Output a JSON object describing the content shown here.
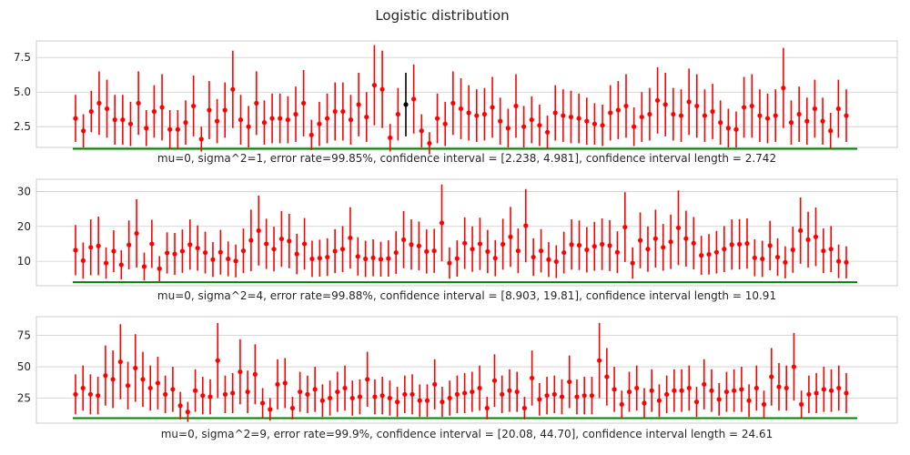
{
  "figure": {
    "title": "Logistic distribution"
  },
  "chart_data": [
    {
      "type": "errorbar",
      "caption": "mu=0, sigma^2=1, error rate=99.85%, confidence interval = [2.238, 4.981], confidence interval length = 2.742",
      "ylim": [
        1.0,
        8.7
      ],
      "yticks": [
        2.5,
        5.0,
        7.5
      ],
      "ytick_labels": [
        "2.5",
        "5.0",
        "7.5"
      ],
      "grid": true,
      "reference_line": {
        "value": 0.9,
        "color": "#008000"
      },
      "point_color": "#ff0000",
      "miss_color": "#000000",
      "miss_indices": [
        42
      ],
      "values": [
        3.1,
        2.2,
        3.6,
        4.2,
        3.8,
        3.0,
        3.0,
        2.7,
        4.2,
        2.4,
        3.6,
        3.9,
        2.3,
        2.3,
        2.8,
        4.0,
        1.6,
        3.7,
        2.9,
        3.7,
        5.2,
        3.0,
        2.5,
        4.2,
        2.8,
        3.1,
        3.1,
        3.0,
        3.4,
        4.2,
        1.9,
        2.7,
        3.1,
        3.6,
        3.6,
        3.0,
        4.1,
        3.2,
        5.5,
        5.2,
        1.7,
        3.4,
        4.1,
        4.5,
        2.2,
        1.3,
        3.1,
        2.7,
        4.2,
        3.8,
        3.5,
        3.3,
        3.4,
        3.9,
        2.9,
        2.4,
        4.0,
        2.5,
        3.0,
        2.6,
        2.1,
        3.5,
        3.3,
        3.2,
        3.1,
        2.9,
        2.7,
        2.6,
        3.5,
        3.7,
        4.0,
        2.5,
        3.2,
        3.4,
        4.4,
        4.1,
        3.4,
        3.3,
        4.3,
        4.0,
        3.3,
        3.6,
        2.8,
        2.4,
        2.3,
        3.9,
        4.0,
        3.3,
        3.1,
        3.3,
        5.3,
        2.8,
        3.4,
        2.9,
        3.8,
        2.9,
        2.2,
        3.8,
        3.3
      ],
      "half_widths": [
        1.7,
        1.2,
        1.5,
        2.3,
        2.1,
        1.8,
        1.8,
        1.6,
        2.3,
        1.3,
        1.9,
        2.4,
        1.4,
        1.4,
        1.6,
        2.2,
        0.9,
        2.1,
        1.6,
        2.0,
        2.8,
        1.8,
        1.5,
        2.3,
        1.6,
        1.8,
        1.8,
        1.7,
        2.0,
        2.4,
        1.1,
        1.6,
        1.8,
        2.1,
        2.1,
        1.8,
        2.3,
        1.8,
        2.9,
        2.8,
        1.0,
        1.9,
        2.3,
        2.5,
        1.2,
        0.8,
        1.8,
        1.6,
        2.3,
        2.2,
        2.0,
        1.9,
        1.9,
        2.2,
        1.7,
        1.4,
        2.3,
        1.5,
        1.7,
        1.5,
        1.2,
        2.0,
        1.9,
        1.9,
        1.8,
        1.7,
        1.5,
        1.5,
        2.0,
        2.1,
        2.3,
        1.4,
        1.8,
        1.9,
        2.4,
        2.3,
        1.9,
        1.9,
        2.4,
        2.3,
        1.9,
        2.0,
        1.6,
        1.4,
        1.3,
        2.2,
        2.3,
        1.9,
        1.8,
        1.9,
        2.9,
        1.6,
        2.0,
        1.7,
        2.1,
        1.7,
        1.3,
        2.1,
        1.9
      ]
    },
    {
      "type": "errorbar",
      "caption": "mu=0, sigma^2=4, error rate=99.88%, confidence interval = [8.903, 19.81], confidence interval length = 10.91",
      "ylim": [
        3.0,
        33.5
      ],
      "yticks": [
        10,
        20,
        30
      ],
      "ytick_labels": [
        "10",
        "20",
        "30"
      ],
      "grid": true,
      "reference_line": {
        "value": 4.0,
        "color": "#008000"
      },
      "point_color": "#ff0000",
      "values": [
        13.2,
        10.2,
        14.0,
        14.4,
        9.5,
        12.9,
        9.0,
        14.7,
        18.0,
        8.5,
        15.0,
        7.9,
        12.4,
        12.1,
        12.9,
        14.8,
        13.8,
        12.5,
        10.5,
        12.6,
        10.7,
        10.1,
        13.0,
        16.0,
        18.8,
        15.0,
        13.5,
        16.4,
        15.8,
        12.1,
        15.0,
        10.7,
        10.9,
        11.2,
        12.9,
        13.5,
        16.7,
        11.4,
        10.7,
        11.0,
        10.6,
        10.8,
        12.5,
        16.2,
        14.8,
        14.4,
        12.8,
        13.0,
        21.0,
        9.5,
        10.8,
        15.2,
        13.5,
        15.0,
        12.8,
        10.9,
        14.9,
        17.0,
        13.0,
        20.2,
        11.2,
        13.0,
        10.5,
        9.9,
        12.5,
        14.8,
        14.6,
        13.3,
        14.3,
        14.9,
        14.5,
        12.6,
        19.8,
        9.5,
        16.0,
        13.5,
        16.5,
        14.0,
        15.6,
        19.6,
        16.5,
        15.2,
        11.7,
        12.0,
        12.6,
        13.5,
        14.8,
        14.9,
        15.1,
        11.0,
        10.7,
        14.5,
        11.2,
        9.7,
        13.3,
        18.8,
        16.2,
        17.0,
        13.0,
        13.5,
        10.0,
        9.7
      ],
      "half_widths": [
        7.2,
        5.2,
        8.0,
        8.4,
        4.5,
        6.0,
        4.2,
        7.0,
        9.8,
        4.0,
        6.9,
        3.6,
        5.9,
        6.0,
        6.2,
        7.2,
        6.5,
        6.0,
        5.0,
        6.4,
        5.0,
        4.7,
        6.4,
        8.8,
        10.0,
        7.2,
        6.4,
        8.0,
        7.8,
        5.8,
        7.4,
        5.2,
        5.3,
        5.4,
        6.3,
        6.6,
        8.8,
        5.5,
        5.2,
        5.3,
        5.0,
        5.2,
        6.1,
        8.2,
        7.2,
        7.0,
        6.3,
        6.3,
        11.0,
        4.5,
        5.2,
        7.4,
        6.5,
        7.5,
        6.2,
        5.2,
        7.3,
        8.6,
        6.4,
        10.5,
        5.4,
        6.2,
        5.0,
        4.7,
        6.0,
        7.2,
        7.1,
        6.5,
        7.0,
        7.4,
        7.3,
        6.0,
        10.0,
        4.5,
        8.0,
        6.5,
        8.3,
        6.7,
        7.8,
        10.7,
        8.0,
        7.5,
        5.6,
        5.8,
        6.1,
        6.6,
        7.2,
        7.2,
        7.2,
        5.3,
        5.2,
        7.1,
        5.4,
        4.6,
        6.6,
        9.5,
        8.0,
        8.4,
        6.4,
        6.6,
        4.8,
        4.6
      ]
    },
    {
      "type": "errorbar",
      "caption": "mu=0, sigma^2=9, error rate=99.9%, confidence interval = [20.08, 44.70], confidence interval length = 24.61",
      "ylim": [
        5.0,
        90.0
      ],
      "yticks": [
        25,
        50,
        75
      ],
      "ytick_labels": [
        "25",
        "50",
        "75"
      ],
      "grid": true,
      "reference_line": {
        "value": 9.0,
        "color": "#008000"
      },
      "point_color": "#ff0000",
      "values": [
        28,
        33,
        28,
        27,
        43,
        40,
        54,
        35,
        49,
        40,
        33,
        37,
        28,
        32,
        19,
        14,
        31,
        27,
        26,
        55,
        28,
        29,
        46,
        30,
        44,
        21,
        16,
        36,
        37,
        17,
        30,
        28,
        32,
        23,
        25,
        30,
        33,
        25,
        26,
        40,
        26,
        27,
        25,
        22,
        28,
        28,
        23,
        23,
        36,
        22,
        25,
        28,
        29,
        30,
        33,
        17,
        39,
        28,
        31,
        30,
        17,
        41,
        24,
        27,
        28,
        26,
        38,
        26,
        27,
        27,
        55,
        42,
        32,
        20,
        30,
        33,
        21,
        31,
        23,
        28,
        31,
        31,
        33,
        22,
        36,
        31,
        24,
        30,
        31,
        32,
        23,
        33,
        20,
        42,
        34,
        33,
        50,
        20,
        28,
        29,
        32,
        31,
        33,
        29
      ],
      "half_widths": [
        16,
        18,
        16,
        15,
        24,
        23,
        30,
        19,
        27,
        22,
        18,
        21,
        15,
        18,
        11,
        8,
        17,
        15,
        14,
        30,
        15,
        16,
        26,
        17,
        24,
        12,
        9,
        20,
        20,
        9,
        16,
        15,
        18,
        13,
        14,
        16,
        18,
        14,
        14,
        22,
        14,
        15,
        14,
        12,
        15,
        16,
        13,
        13,
        20,
        12,
        14,
        15,
        16,
        16,
        18,
        9,
        21,
        15,
        17,
        16,
        9,
        22,
        13,
        15,
        15,
        14,
        21,
        14,
        15,
        15,
        30,
        23,
        18,
        11,
        16,
        18,
        12,
        17,
        13,
        15,
        17,
        17,
        18,
        12,
        20,
        17,
        13,
        16,
        17,
        18,
        13,
        18,
        11,
        23,
        19,
        18,
        27,
        11,
        15,
        16,
        18,
        17,
        18,
        16
      ]
    }
  ]
}
